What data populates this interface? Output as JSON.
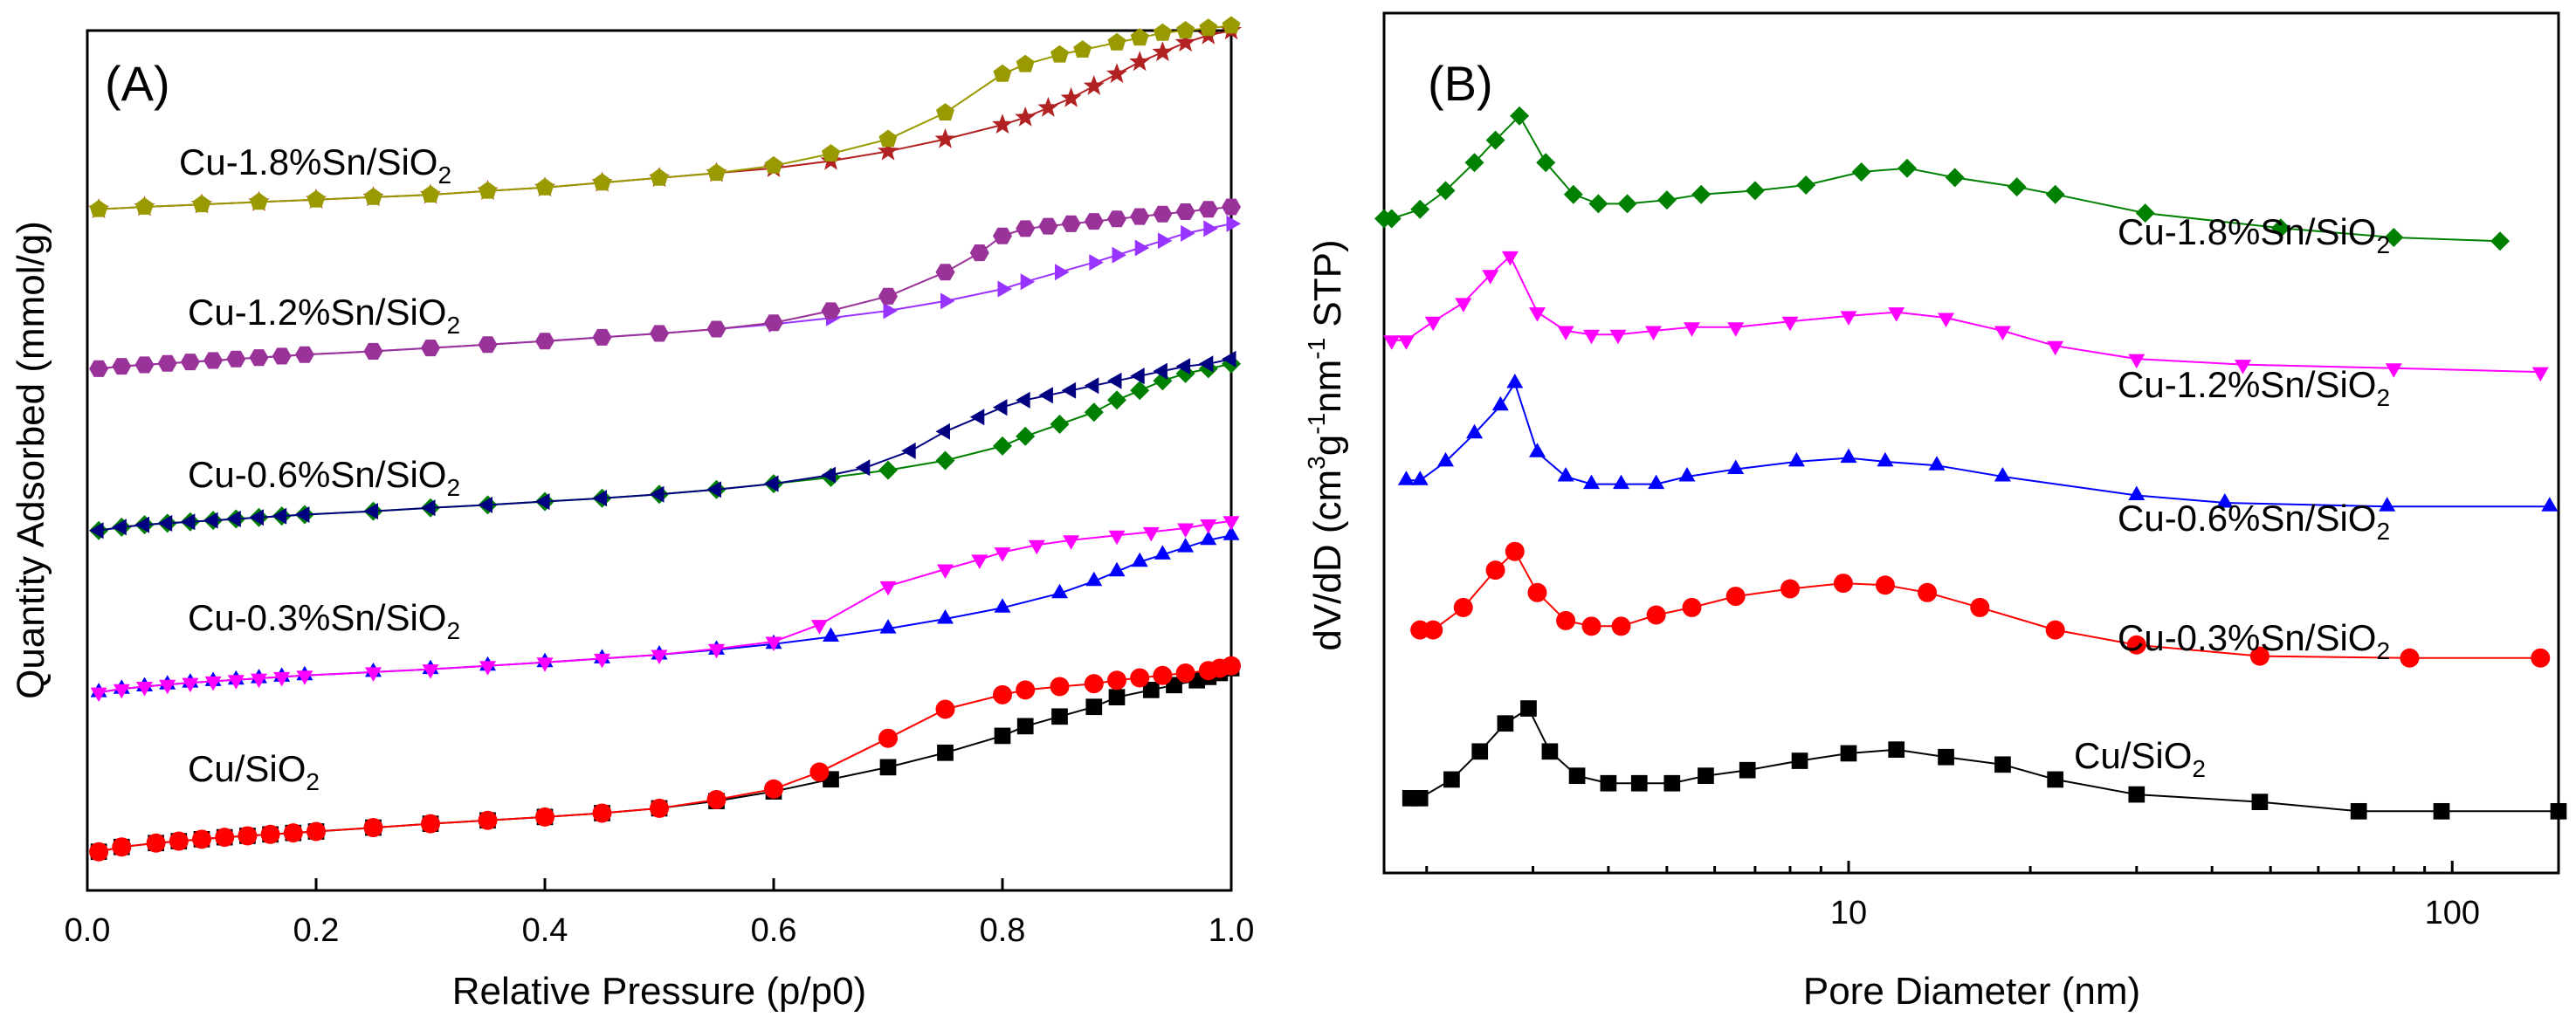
{
  "chart_data": [
    {
      "type": "line",
      "panel_label": "(A)",
      "xlabel": "Relative Pressure (p/p0)",
      "ylabel": "Quantity Adsorbed (mmol/g)",
      "xlim": [
        0,
        1
      ],
      "ylim": [
        -0.8,
        17
      ],
      "xscale": "linear",
      "yticks_shown": false,
      "xticks": [
        0.0,
        0.2,
        0.4,
        0.6,
        0.8,
        1.0
      ],
      "xtick_labels": [
        "0.0",
        "0.2",
        "0.4",
        "0.6",
        "0.8",
        "1.0"
      ],
      "series": [
        {
          "name": "Cu/SiO2 (adsorption)",
          "color": "#000000",
          "marker": "square",
          "x": [
            0.01,
            0.03,
            0.06,
            0.08,
            0.1,
            0.12,
            0.14,
            0.16,
            0.18,
            0.2,
            0.25,
            0.3,
            0.35,
            0.4,
            0.45,
            0.5,
            0.55,
            0.6,
            0.65,
            0.7,
            0.75,
            0.8,
            0.82,
            0.85,
            0.88,
            0.9,
            0.93,
            0.95,
            0.97,
            0.98,
            0.99,
            1.0
          ],
          "y": [
            0,
            0.1,
            0.18,
            0.22,
            0.26,
            0.3,
            0.33,
            0.36,
            0.39,
            0.42,
            0.5,
            0.58,
            0.65,
            0.72,
            0.8,
            0.9,
            1.05,
            1.25,
            1.5,
            1.75,
            2.05,
            2.4,
            2.6,
            2.8,
            3.0,
            3.2,
            3.35,
            3.45,
            3.55,
            3.62,
            3.7,
            3.8
          ]
        },
        {
          "name": "Cu/SiO2 (desorption)",
          "color": "#ff0000",
          "marker": "circle",
          "x": [
            0.01,
            0.03,
            0.06,
            0.08,
            0.1,
            0.12,
            0.14,
            0.16,
            0.18,
            0.2,
            0.25,
            0.3,
            0.35,
            0.4,
            0.45,
            0.5,
            0.55,
            0.6,
            0.64,
            0.7,
            0.75,
            0.8,
            0.82,
            0.85,
            0.88,
            0.9,
            0.92,
            0.94,
            0.96,
            0.98,
            0.99,
            1.0
          ],
          "y": [
            0,
            0.1,
            0.18,
            0.22,
            0.26,
            0.3,
            0.33,
            0.36,
            0.39,
            0.42,
            0.5,
            0.58,
            0.65,
            0.72,
            0.8,
            0.9,
            1.08,
            1.3,
            1.65,
            2.35,
            2.95,
            3.25,
            3.35,
            3.42,
            3.48,
            3.55,
            3.6,
            3.65,
            3.7,
            3.75,
            3.8,
            3.85
          ]
        },
        {
          "name": "Cu-0.3%Sn/SiO2 (adsorption)",
          "color": "#0000ff",
          "marker": "triangle-up",
          "x": [
            0.01,
            0.03,
            0.05,
            0.07,
            0.09,
            0.11,
            0.13,
            0.15,
            0.17,
            0.19,
            0.25,
            0.3,
            0.35,
            0.4,
            0.45,
            0.5,
            0.55,
            0.6,
            0.65,
            0.7,
            0.75,
            0.8,
            0.85,
            0.88,
            0.9,
            0.92,
            0.94,
            0.96,
            0.98,
            1.0
          ],
          "y": [
            3.3,
            3.37,
            3.42,
            3.46,
            3.5,
            3.53,
            3.56,
            3.59,
            3.62,
            3.65,
            3.72,
            3.78,
            3.85,
            3.92,
            4.0,
            4.08,
            4.18,
            4.3,
            4.45,
            4.62,
            4.82,
            5.05,
            5.35,
            5.6,
            5.8,
            6.0,
            6.15,
            6.3,
            6.45,
            6.55
          ]
        },
        {
          "name": "Cu-0.3%Sn/SiO2 (desorption)",
          "color": "#ff00ff",
          "marker": "triangle-down",
          "x": [
            0.01,
            0.03,
            0.05,
            0.07,
            0.09,
            0.11,
            0.13,
            0.15,
            0.17,
            0.19,
            0.25,
            0.3,
            0.35,
            0.4,
            0.45,
            0.5,
            0.55,
            0.6,
            0.64,
            0.7,
            0.75,
            0.78,
            0.8,
            0.83,
            0.86,
            0.9,
            0.93,
            0.96,
            0.98,
            1.0
          ],
          "y": [
            3.3,
            3.37,
            3.42,
            3.46,
            3.5,
            3.53,
            3.56,
            3.59,
            3.62,
            3.65,
            3.72,
            3.78,
            3.85,
            3.92,
            4.0,
            4.08,
            4.2,
            4.35,
            4.7,
            5.5,
            5.85,
            6.05,
            6.2,
            6.35,
            6.45,
            6.55,
            6.62,
            6.7,
            6.78,
            6.85
          ]
        },
        {
          "name": "Cu-0.6%Sn/SiO2 (adsorption)",
          "color": "#008000",
          "marker": "diamond",
          "x": [
            0.01,
            0.03,
            0.05,
            0.07,
            0.09,
            0.11,
            0.13,
            0.15,
            0.17,
            0.19,
            0.25,
            0.3,
            0.35,
            0.4,
            0.45,
            0.5,
            0.55,
            0.6,
            0.65,
            0.7,
            0.75,
            0.8,
            0.82,
            0.85,
            0.88,
            0.9,
            0.92,
            0.94,
            0.96,
            0.98,
            1.0
          ],
          "y": [
            6.65,
            6.72,
            6.77,
            6.8,
            6.83,
            6.86,
            6.89,
            6.92,
            6.95,
            6.98,
            7.05,
            7.12,
            7.18,
            7.25,
            7.32,
            7.4,
            7.5,
            7.62,
            7.75,
            7.9,
            8.1,
            8.4,
            8.6,
            8.85,
            9.1,
            9.35,
            9.55,
            9.75,
            9.9,
            10.0,
            10.1
          ]
        },
        {
          "name": "Cu-0.6%Sn/SiO2 (desorption)",
          "color": "#000080",
          "marker": "triangle-left",
          "x": [
            0.01,
            0.03,
            0.05,
            0.07,
            0.09,
            0.11,
            0.13,
            0.15,
            0.17,
            0.19,
            0.25,
            0.3,
            0.35,
            0.4,
            0.45,
            0.5,
            0.55,
            0.6,
            0.65,
            0.68,
            0.72,
            0.75,
            0.78,
            0.8,
            0.82,
            0.84,
            0.86,
            0.88,
            0.9,
            0.92,
            0.94,
            0.96,
            0.98,
            1.0
          ],
          "y": [
            6.65,
            6.72,
            6.77,
            6.8,
            6.83,
            6.86,
            6.89,
            6.92,
            6.95,
            6.98,
            7.05,
            7.12,
            7.18,
            7.25,
            7.32,
            7.4,
            7.5,
            7.62,
            7.8,
            7.95,
            8.3,
            8.7,
            9.0,
            9.2,
            9.35,
            9.45,
            9.55,
            9.65,
            9.75,
            9.85,
            9.95,
            10.05,
            10.1,
            10.2
          ]
        },
        {
          "name": "Cu-1.2%Sn/SiO2 (adsorption)",
          "color": "#9933ff",
          "marker": "triangle-right",
          "x": [
            0.01,
            0.03,
            0.05,
            0.07,
            0.09,
            0.11,
            0.13,
            0.15,
            0.17,
            0.19,
            0.25,
            0.3,
            0.35,
            0.4,
            0.45,
            0.5,
            0.55,
            0.6,
            0.65,
            0.7,
            0.75,
            0.8,
            0.82,
            0.85,
            0.88,
            0.9,
            0.92,
            0.94,
            0.96,
            0.98,
            1.0
          ],
          "y": [
            10.0,
            10.05,
            10.08,
            10.11,
            10.14,
            10.17,
            10.2,
            10.23,
            10.26,
            10.29,
            10.36,
            10.43,
            10.5,
            10.57,
            10.65,
            10.73,
            10.82,
            10.92,
            11.05,
            11.2,
            11.4,
            11.65,
            11.8,
            12.0,
            12.2,
            12.35,
            12.5,
            12.65,
            12.8,
            12.9,
            13.0
          ]
        },
        {
          "name": "Cu-1.2%Sn/SiO2 (desorption)",
          "color": "#993399",
          "marker": "hexagon",
          "x": [
            0.01,
            0.03,
            0.05,
            0.07,
            0.09,
            0.11,
            0.13,
            0.15,
            0.17,
            0.19,
            0.25,
            0.3,
            0.35,
            0.4,
            0.45,
            0.5,
            0.55,
            0.6,
            0.65,
            0.7,
            0.75,
            0.78,
            0.8,
            0.82,
            0.84,
            0.86,
            0.88,
            0.9,
            0.92,
            0.94,
            0.96,
            0.98,
            1.0
          ],
          "y": [
            10.0,
            10.05,
            10.08,
            10.11,
            10.14,
            10.17,
            10.2,
            10.23,
            10.26,
            10.29,
            10.36,
            10.43,
            10.5,
            10.57,
            10.65,
            10.73,
            10.82,
            10.95,
            11.2,
            11.5,
            12.0,
            12.4,
            12.75,
            12.9,
            12.95,
            13.0,
            13.05,
            13.1,
            13.15,
            13.2,
            13.25,
            13.3,
            13.35
          ]
        },
        {
          "name": "Cu-1.8%Sn/SiO2 (adsorption)",
          "color": "#b22222",
          "marker": "star",
          "x": [
            0.01,
            0.05,
            0.1,
            0.15,
            0.2,
            0.25,
            0.3,
            0.35,
            0.4,
            0.45,
            0.5,
            0.55,
            0.6,
            0.65,
            0.7,
            0.75,
            0.8,
            0.82,
            0.84,
            0.86,
            0.88,
            0.9,
            0.92,
            0.94,
            0.96,
            0.98,
            1.0
          ],
          "y": [
            13.3,
            13.35,
            13.4,
            13.45,
            13.5,
            13.55,
            13.6,
            13.68,
            13.75,
            13.85,
            13.95,
            14.05,
            14.15,
            14.3,
            14.5,
            14.75,
            15.05,
            15.2,
            15.4,
            15.6,
            15.85,
            16.1,
            16.35,
            16.55,
            16.75,
            16.9,
            17.0
          ]
        },
        {
          "name": "Cu-1.8%Sn/SiO2 (desorption)",
          "color": "#999900",
          "marker": "pentagon",
          "x": [
            0.01,
            0.05,
            0.1,
            0.15,
            0.2,
            0.25,
            0.3,
            0.35,
            0.4,
            0.45,
            0.5,
            0.55,
            0.6,
            0.65,
            0.7,
            0.75,
            0.8,
            0.82,
            0.85,
            0.87,
            0.9,
            0.92,
            0.94,
            0.96,
            0.98,
            1.0
          ],
          "y": [
            13.3,
            13.35,
            13.4,
            13.45,
            13.5,
            13.55,
            13.6,
            13.68,
            13.75,
            13.85,
            13.95,
            14.05,
            14.2,
            14.45,
            14.75,
            15.3,
            16.1,
            16.3,
            16.5,
            16.6,
            16.75,
            16.85,
            16.95,
            17.0,
            17.05,
            17.1
          ]
        }
      ],
      "annotations": [
        {
          "base": "Cu/SiO",
          "sub": "2",
          "series_ref": 0
        },
        {
          "base": "Cu-0.3%Sn/SiO",
          "sub": "2",
          "series_ref": 2
        },
        {
          "base": "Cu-0.6%Sn/SiO",
          "sub": "2",
          "series_ref": 4
        },
        {
          "base": "Cu-1.2%Sn/SiO",
          "sub": "2",
          "series_ref": 6
        },
        {
          "base": "Cu-1.8%Sn/SiO",
          "sub": "2",
          "series_ref": 8
        }
      ]
    },
    {
      "type": "line",
      "panel_label": "(B)",
      "xlabel": "Pore Diameter (nm)",
      "ylabel_parts": [
        "dV/dD (cm",
        "3",
        "g",
        "-1",
        "nm",
        "-1",
        " STP)"
      ],
      "xscale": "log",
      "xlim": [
        1.7,
        150
      ],
      "ylim": [
        -0.3,
        4.3
      ],
      "yticks_shown": false,
      "xticks": [
        10,
        100
      ],
      "xtick_labels": [
        "10",
        "100"
      ],
      "series": [
        {
          "name": "Cu/SiO2",
          "color": "#000000",
          "marker": "square",
          "x": [
            1.88,
            1.95,
            2.2,
            2.45,
            2.7,
            2.95,
            3.2,
            3.55,
            4.0,
            4.5,
            5.1,
            5.8,
            6.8,
            8.3,
            10,
            12,
            14.5,
            18,
            22,
            30,
            48,
            70,
            96,
            150
          ],
          "y": [
            0.1,
            0.1,
            0.2,
            0.35,
            0.5,
            0.58,
            0.35,
            0.22,
            0.18,
            0.18,
            0.18,
            0.22,
            0.25,
            0.3,
            0.34,
            0.36,
            0.32,
            0.28,
            0.2,
            0.12,
            0.08,
            0.03,
            0.03,
            0.03
          ]
        },
        {
          "name": "Cu-0.3%Sn/SiO2",
          "color": "#ff0000",
          "marker": "circle",
          "x": [
            1.95,
            2.05,
            2.3,
            2.6,
            2.8,
            3.05,
            3.4,
            3.75,
            4.2,
            4.8,
            5.5,
            6.5,
            8,
            9.8,
            11.5,
            13.5,
            16.5,
            22,
            30,
            48,
            85,
            140
          ],
          "y": [
            1.0,
            1.0,
            1.12,
            1.32,
            1.42,
            1.2,
            1.05,
            1.02,
            1.02,
            1.08,
            1.12,
            1.18,
            1.22,
            1.25,
            1.24,
            1.2,
            1.12,
            1.0,
            0.92,
            0.86,
            0.85,
            0.85
          ]
        },
        {
          "name": "Cu-0.6%Sn/SiO2",
          "color": "#0000ff",
          "marker": "triangle-up",
          "x": [
            1.85,
            1.95,
            2.15,
            2.4,
            2.65,
            2.8,
            3.05,
            3.4,
            3.75,
            4.2,
            4.8,
            5.4,
            6.5,
            8.2,
            10,
            11.5,
            14,
            18,
            30,
            42,
            78,
            145
          ],
          "y": [
            1.8,
            1.8,
            1.9,
            2.05,
            2.2,
            2.32,
            1.95,
            1.82,
            1.78,
            1.78,
            1.78,
            1.82,
            1.86,
            1.9,
            1.92,
            1.9,
            1.88,
            1.82,
            1.72,
            1.68,
            1.66,
            1.66
          ]
        },
        {
          "name": "Cu-1.2%Sn/SiO2",
          "color": "#ff00ff",
          "marker": "triangle-down",
          "x": [
            1.75,
            1.85,
            2.05,
            2.3,
            2.55,
            2.75,
            3.05,
            3.4,
            3.75,
            4.15,
            4.75,
            5.5,
            6.5,
            8,
            10,
            12,
            14.5,
            18,
            22,
            30,
            45,
            80,
            140
          ],
          "y": [
            2.55,
            2.55,
            2.65,
            2.75,
            2.9,
            3.0,
            2.7,
            2.6,
            2.58,
            2.58,
            2.6,
            2.62,
            2.62,
            2.65,
            2.68,
            2.7,
            2.67,
            2.6,
            2.52,
            2.45,
            2.42,
            2.4,
            2.38
          ]
        },
        {
          "name": "Cu-1.8%Sn/SiO2",
          "color": "#008000",
          "marker": "diamond",
          "x": [
            1.7,
            1.75,
            1.95,
            2.15,
            2.4,
            2.6,
            2.85,
            3.15,
            3.5,
            3.85,
            4.3,
            5,
            5.7,
            7,
            8.5,
            10.5,
            12.5,
            15,
            19,
            22,
            31,
            52,
            80,
            120
          ],
          "y": [
            3.2,
            3.2,
            3.25,
            3.35,
            3.5,
            3.62,
            3.75,
            3.5,
            3.33,
            3.28,
            3.28,
            3.3,
            3.33,
            3.35,
            3.38,
            3.45,
            3.47,
            3.42,
            3.37,
            3.33,
            3.23,
            3.15,
            3.1,
            3.08
          ]
        }
      ],
      "annotations": [
        {
          "base": "Cu/SiO",
          "sub": "2"
        },
        {
          "base": "Cu-0.3%Sn/SiO",
          "sub": "2"
        },
        {
          "base": "Cu-0.6%Sn/SiO",
          "sub": "2"
        },
        {
          "base": "Cu-1.2%Sn/SiO",
          "sub": "2"
        },
        {
          "base": "Cu-1.8%Sn/SiO",
          "sub": "2"
        }
      ]
    }
  ]
}
